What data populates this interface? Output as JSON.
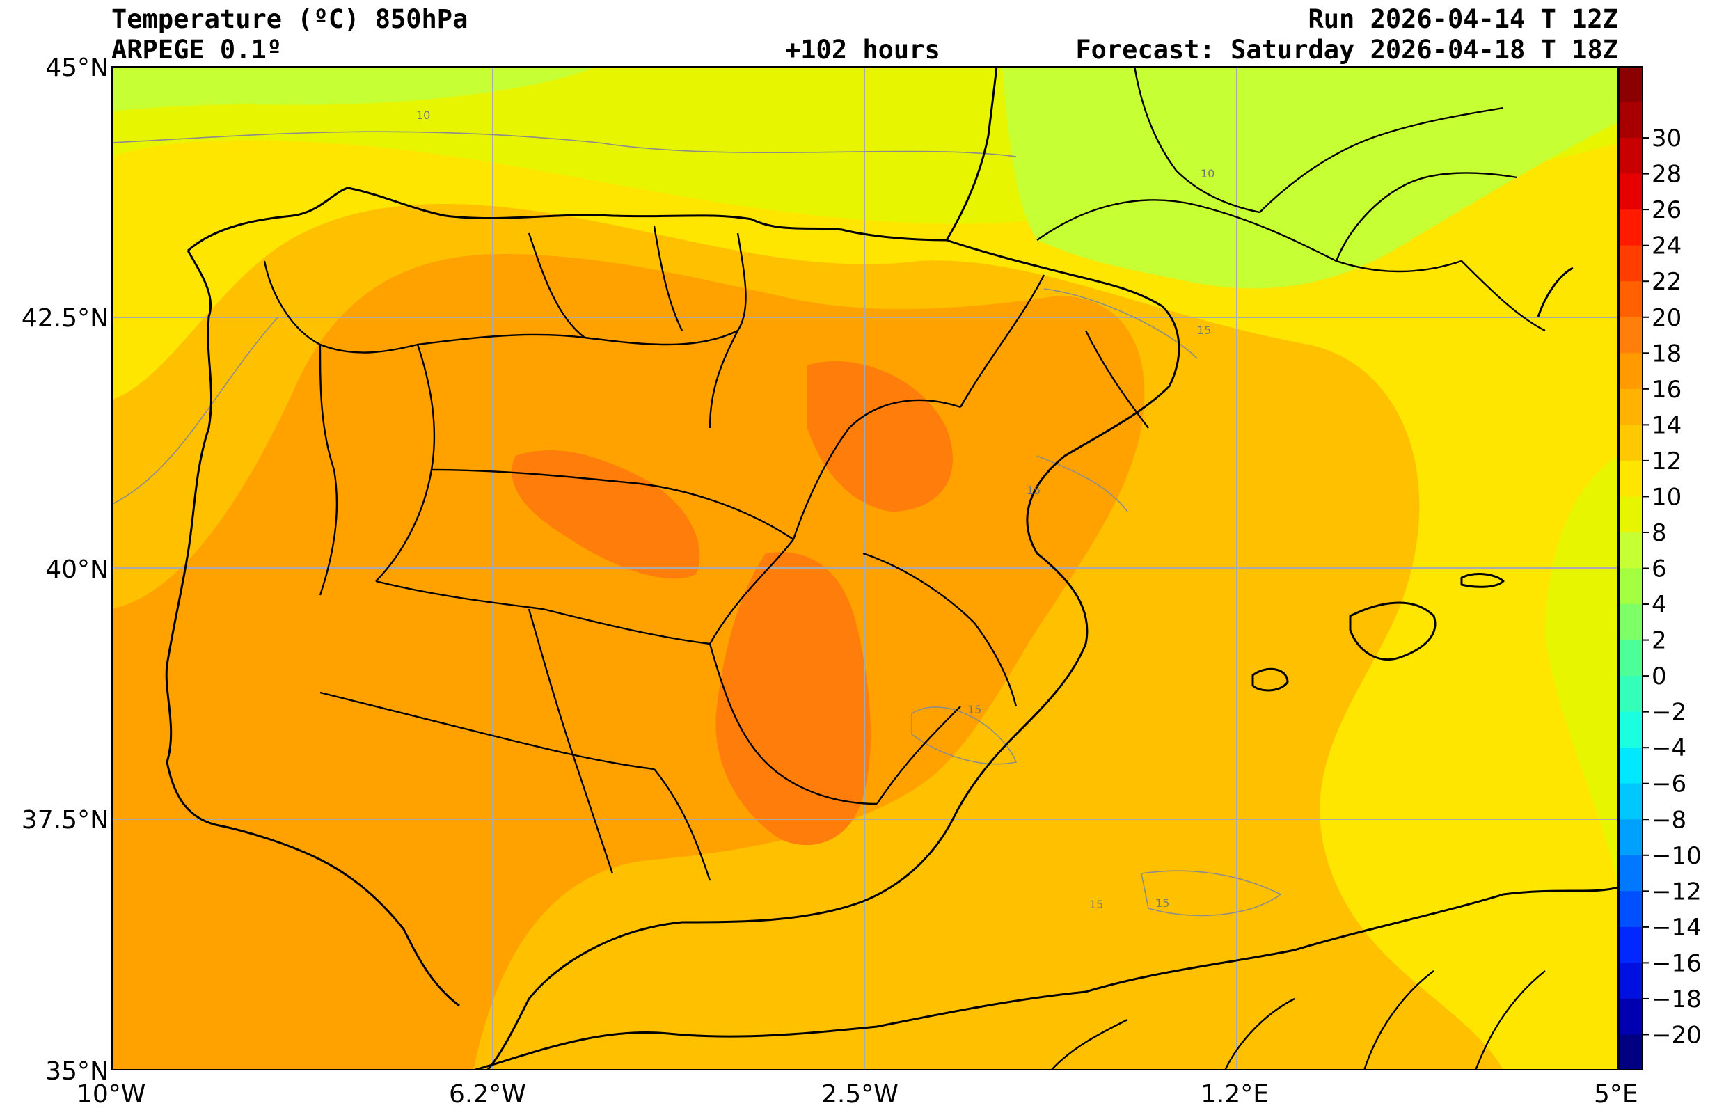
{
  "header": {
    "title": "Temperature (ºC) 850hPa",
    "model": "ARPEGE 0.1º",
    "lead_time": "+102 hours",
    "run": "Run 2026-04-14 T 12Z",
    "forecast": "Forecast: Saturday 2026-04-18 T 18Z"
  },
  "map": {
    "region": "Iberian Peninsula",
    "lat_labels": [
      "45°N",
      "42.5°N",
      "40°N",
      "37.5°N",
      "35°N"
    ],
    "lon_labels": [
      "10°W",
      "6.2°W",
      "2.5°W",
      "1.2°E",
      "5°E"
    ],
    "contour_labels": [
      "10",
      "10",
      "15",
      "15",
      "15",
      "15",
      "15"
    ]
  },
  "colorbar": {
    "labels": [
      "30",
      "28",
      "26",
      "24",
      "22",
      "20",
      "18",
      "16",
      "14",
      "12",
      "10",
      "8",
      "6",
      "4",
      "2",
      "0",
      "−2",
      "−4",
      "−6",
      "−8",
      "−10",
      "−12",
      "−14",
      "−16",
      "−18",
      "−20"
    ],
    "colors": [
      "#8b0000",
      "#a80000",
      "#c80000",
      "#e60000",
      "#ff1a00",
      "#ff3d00",
      "#ff6100",
      "#ff7f0a",
      "#ff9a00",
      "#ffb200",
      "#ffc800",
      "#ffe600",
      "#e8f500",
      "#c6ff33",
      "#a4ff40",
      "#7fff66",
      "#4dff99",
      "#33ffbb",
      "#1affe0",
      "#00e8ff",
      "#00c8ff",
      "#00a0ff",
      "#0078ff",
      "#0050ff",
      "#0028ff",
      "#0010e0",
      "#0000b0",
      "#000080"
    ]
  },
  "colors": {
    "sea_yellow": "#ffe600",
    "warm_orange": "#ffa200",
    "hot_orange": "#ff7d0a",
    "cool_green": "#c6ff33",
    "light_orange": "#ffc000"
  }
}
